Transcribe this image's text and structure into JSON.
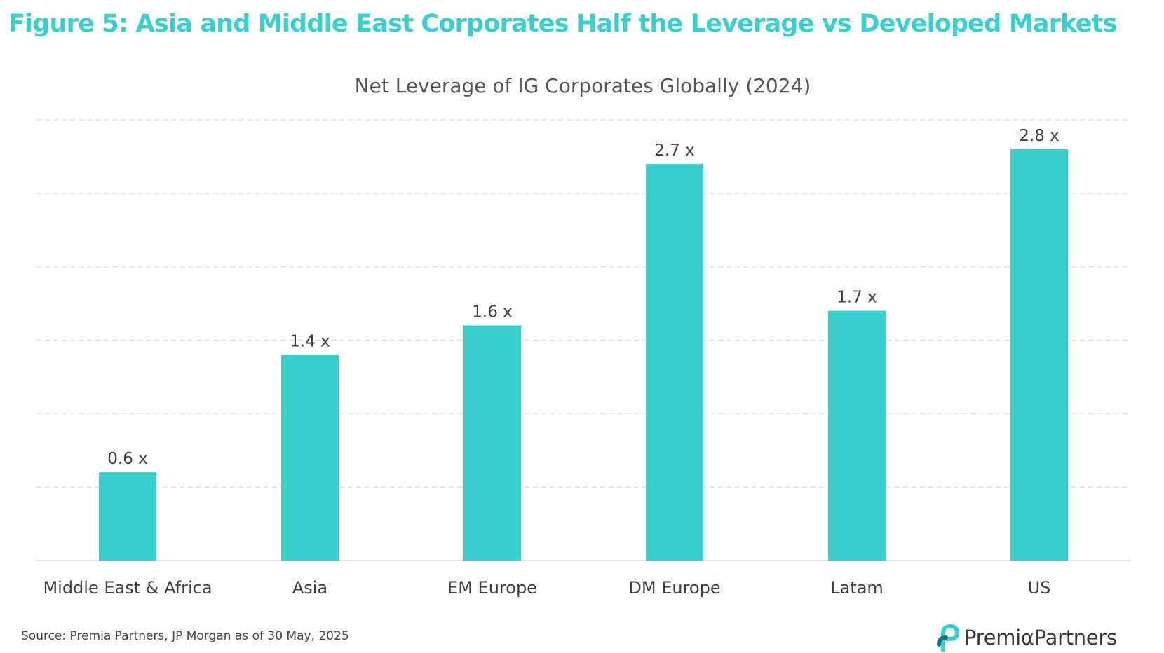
{
  "header": {
    "figure_title": "Figure 5: Asia and Middle East Corporates Half the Leverage vs Developed Markets"
  },
  "chart_data": {
    "type": "bar",
    "title": "Net Leverage of IG Corporates Globally (2024)",
    "categories": [
      "Middle East & Africa",
      "Asia",
      "EM Europe",
      "DM Europe",
      "Latam",
      "US"
    ],
    "values": [
      0.6,
      1.4,
      1.6,
      2.7,
      1.7,
      2.8
    ],
    "data_labels": [
      "0.6 x",
      "1.4 x",
      "1.6 x",
      "2.7 x",
      "1.7 x",
      "2.8 x"
    ],
    "xlabel": "",
    "ylabel": "",
    "ylim": [
      0,
      3.0
    ],
    "grid_step": 0.5,
    "grid": true,
    "y_tick_labels_visible": false,
    "legend": "none",
    "bar_color": "#3ACFCF"
  },
  "footer": {
    "source": "Source: Premia Partners, JP Morgan as of 30 May, 2025",
    "brand": "PremiαPartners"
  },
  "colors": {
    "accent": "#3ACFCF",
    "brand_dark": "#1F6E7E",
    "text": "#404040"
  }
}
